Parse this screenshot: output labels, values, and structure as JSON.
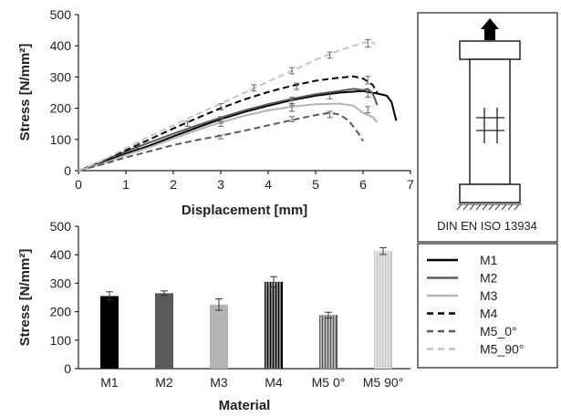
{
  "chart_data": [
    {
      "type": "line",
      "xlabel": "Displacement [mm]",
      "ylabel": "Stress [N/mm²]",
      "xlim": [
        0,
        7
      ],
      "ylim": [
        0,
        500
      ],
      "xticks": [
        "0",
        "1",
        "2",
        "3",
        "4",
        "5",
        "6",
        "7"
      ],
      "yticks": [
        "0",
        "100",
        "200",
        "300",
        "400",
        "500"
      ],
      "grid": false,
      "series": [
        {
          "name": "M1",
          "x": [
            0,
            0.5,
            1,
            1.5,
            2,
            2.5,
            3,
            3.5,
            4,
            4.5,
            5,
            5.5,
            6,
            6.3,
            6.5,
            6.6,
            6.7
          ],
          "y": [
            0,
            25,
            55,
            80,
            110,
            138,
            165,
            188,
            208,
            226,
            240,
            250,
            255,
            247,
            240,
            220,
            160
          ],
          "err": [
            [
              3,
              160,
              8
            ],
            [
              4.5,
              215,
              10
            ],
            [
              5.3,
              240,
              10
            ]
          ]
        },
        {
          "name": "M2",
          "x": [
            0,
            0.5,
            1,
            1.5,
            2,
            2.5,
            3,
            3.5,
            4,
            4.5,
            5,
            5.5,
            5.8,
            6,
            6.1,
            6.2,
            6.25,
            6.3
          ],
          "y": [
            0,
            30,
            62,
            90,
            118,
            145,
            170,
            193,
            213,
            230,
            245,
            255,
            262,
            258,
            262,
            248,
            230,
            210
          ],
          "err": [
            [
              3,
              165,
              8
            ],
            [
              4.5,
              225,
              10
            ],
            [
              6.1,
              245,
              10
            ]
          ]
        },
        {
          "name": "M3",
          "x": [
            0,
            0.5,
            1,
            1.5,
            2,
            2.5,
            3,
            3.5,
            4,
            4.5,
            5,
            5.5,
            5.8,
            6,
            6.2,
            6.3
          ],
          "y": [
            0,
            22,
            50,
            75,
            103,
            130,
            155,
            176,
            193,
            205,
            213,
            215,
            208,
            185,
            172,
            155
          ],
          "err": [
            [
              3,
              150,
              8
            ],
            [
              4.5,
              200,
              10
            ],
            [
              6.1,
              195,
              10
            ]
          ]
        },
        {
          "name": "M4",
          "x": [
            0,
            0.5,
            1,
            1.5,
            2,
            2.5,
            3,
            3.5,
            4,
            4.5,
            5,
            5.5,
            5.8,
            6,
            6.2,
            6.3
          ],
          "y": [
            0,
            30,
            65,
            100,
            135,
            168,
            200,
            228,
            252,
            272,
            288,
            298,
            302,
            295,
            275,
            250
          ],
          "err": [
            [
              1.25,
              80,
              8
            ],
            [
              2.3,
              150,
              8
            ],
            [
              3,
              205,
              10
            ],
            [
              4.6,
              270,
              10
            ],
            [
              6.1,
              290,
              12
            ]
          ]
        },
        {
          "name": "M5_0°",
          "x": [
            0,
            0.5,
            1,
            1.5,
            2,
            2.5,
            3,
            3.5,
            4,
            4.5,
            5,
            5.3,
            5.5,
            5.7,
            5.9,
            6
          ],
          "y": [
            0,
            20,
            42,
            62,
            82,
            98,
            112,
            128,
            145,
            162,
            178,
            185,
            180,
            160,
            120,
            95
          ],
          "err": [
            [
              3,
              108,
              6
            ],
            [
              4.5,
              165,
              8
            ],
            [
              5.3,
              180,
              10
            ]
          ]
        },
        {
          "name": "M5_90°",
          "x": [
            0,
            0.5,
            1,
            1.5,
            2,
            2.5,
            3,
            3.5,
            4,
            4.5,
            5,
            5.5,
            5.8,
            6,
            6.2,
            6.25
          ],
          "y": [
            0,
            32,
            72,
            110,
            145,
            180,
            215,
            250,
            285,
            320,
            355,
            385,
            400,
            410,
            412,
            405
          ],
          "err": [
            [
              2.3,
              150,
              8
            ],
            [
              3.7,
              265,
              10
            ],
            [
              4.5,
              320,
              10
            ],
            [
              5.3,
              370,
              10
            ],
            [
              6.1,
              408,
              12
            ]
          ]
        }
      ]
    },
    {
      "type": "bar",
      "xlabel": "Material",
      "ylabel": "Stress [N/mm²]",
      "ylim": [
        0,
        500
      ],
      "yticks": [
        "0",
        "100",
        "200",
        "300",
        "400",
        "500"
      ],
      "categories": [
        "M1",
        "M2",
        "M3",
        "M4",
        "M5 0°",
        "M5 90°"
      ],
      "values": [
        255,
        265,
        225,
        305,
        188,
        413
      ],
      "errors": [
        15,
        8,
        20,
        18,
        10,
        12
      ],
      "grid": false
    }
  ],
  "diagram": {
    "caption": "DIN EN ISO 13934"
  },
  "legend": {
    "position": "bottom-right",
    "items": [
      {
        "label": "M1",
        "color": "#000000",
        "dash": "solid"
      },
      {
        "label": "M2",
        "color": "#5a5a5a",
        "dash": "solid"
      },
      {
        "label": "M3",
        "color": "#b3b3b3",
        "dash": "solid"
      },
      {
        "label": "M4",
        "color": "#000000",
        "dash": "dashed"
      },
      {
        "label": "M5_0°",
        "color": "#5a5a5a",
        "dash": "dashed"
      },
      {
        "label": "M5_90°",
        "color": "#c4c4c4",
        "dash": "dashed"
      }
    ]
  }
}
